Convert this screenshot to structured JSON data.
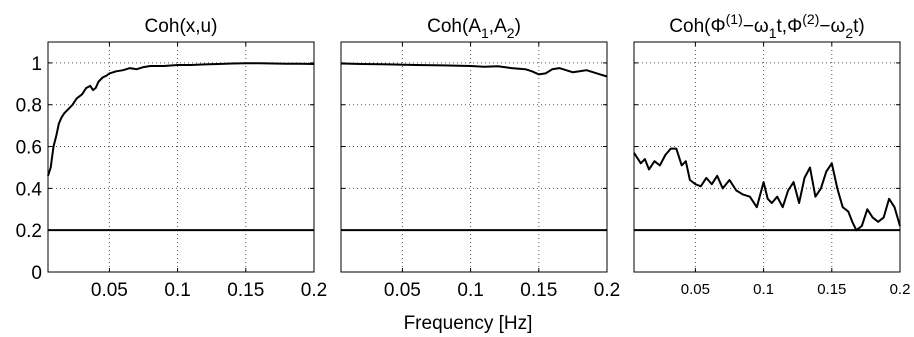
{
  "xlabel": "Frequency [Hz]",
  "chart_data": [
    {
      "type": "line",
      "title": "Coh(x,u)",
      "xlim": [
        0.005,
        0.2
      ],
      "ylim": [
        0,
        1.1
      ],
      "xticks": [
        0.05,
        0.1,
        0.15,
        0.2
      ],
      "xtick_labels": [
        "0.05",
        "0.1",
        "0.15",
        "0.2"
      ],
      "yticks": [
        0,
        0.2,
        0.4,
        0.6,
        0.8,
        1
      ],
      "ytick_labels": [
        "0",
        "0.2",
        "0.4",
        "0.6",
        "0.8",
        "1"
      ],
      "grid": true,
      "threshold": 0.2,
      "x": [
        0.005,
        0.007,
        0.009,
        0.011,
        0.013,
        0.015,
        0.017,
        0.02,
        0.023,
        0.026,
        0.03,
        0.033,
        0.036,
        0.038,
        0.04,
        0.042,
        0.045,
        0.048,
        0.05,
        0.055,
        0.06,
        0.065,
        0.07,
        0.075,
        0.08,
        0.09,
        0.1,
        0.11,
        0.12,
        0.13,
        0.14,
        0.15,
        0.16,
        0.17,
        0.18,
        0.19,
        0.2
      ],
      "y": [
        0.46,
        0.5,
        0.6,
        0.65,
        0.71,
        0.74,
        0.76,
        0.78,
        0.8,
        0.83,
        0.85,
        0.88,
        0.89,
        0.87,
        0.88,
        0.91,
        0.93,
        0.94,
        0.95,
        0.96,
        0.965,
        0.975,
        0.97,
        0.98,
        0.985,
        0.985,
        0.99,
        0.99,
        0.993,
        0.995,
        0.997,
        0.998,
        0.998,
        0.997,
        0.996,
        0.996,
        0.995
      ]
    },
    {
      "type": "line",
      "title": "Coh(A1,A2)",
      "xlim": [
        0.005,
        0.2
      ],
      "ylim": [
        0,
        1.1
      ],
      "xticks": [
        0.05,
        0.1,
        0.15,
        0.2
      ],
      "xtick_labels": [
        "0.05",
        "0.1",
        "0.15",
        "0.2"
      ],
      "grid": true,
      "threshold": 0.2,
      "x": [
        0.005,
        0.02,
        0.04,
        0.06,
        0.08,
        0.1,
        0.11,
        0.12,
        0.13,
        0.14,
        0.145,
        0.15,
        0.155,
        0.16,
        0.165,
        0.17,
        0.175,
        0.18,
        0.185,
        0.19,
        0.195,
        0.2
      ],
      "y": [
        0.997,
        0.995,
        0.993,
        0.99,
        0.988,
        0.985,
        0.982,
        0.984,
        0.975,
        0.97,
        0.96,
        0.945,
        0.95,
        0.97,
        0.975,
        0.965,
        0.955,
        0.96,
        0.965,
        0.955,
        0.945,
        0.935
      ]
    },
    {
      "type": "line",
      "title": "Coh(Φ(1)−ω1t,Φ(2)−ω2t)",
      "xlim": [
        0.005,
        0.2
      ],
      "ylim": [
        0,
        1.1
      ],
      "xticks": [
        0.05,
        0.1,
        0.15,
        0.2
      ],
      "xtick_labels": [
        "0.05",
        "0.1",
        "0.15",
        "0.2"
      ],
      "grid": true,
      "threshold": 0.2,
      "x": [
        0.005,
        0.007,
        0.01,
        0.013,
        0.016,
        0.02,
        0.024,
        0.028,
        0.032,
        0.036,
        0.04,
        0.043,
        0.046,
        0.05,
        0.054,
        0.058,
        0.062,
        0.066,
        0.07,
        0.075,
        0.08,
        0.085,
        0.09,
        0.095,
        0.1,
        0.103,
        0.106,
        0.11,
        0.114,
        0.118,
        0.122,
        0.126,
        0.13,
        0.134,
        0.138,
        0.142,
        0.146,
        0.15,
        0.154,
        0.158,
        0.162,
        0.165,
        0.168,
        0.172,
        0.176,
        0.18,
        0.184,
        0.188,
        0.192,
        0.196,
        0.2
      ],
      "y": [
        0.57,
        0.55,
        0.52,
        0.54,
        0.49,
        0.53,
        0.51,
        0.56,
        0.59,
        0.59,
        0.51,
        0.53,
        0.44,
        0.42,
        0.41,
        0.45,
        0.42,
        0.46,
        0.4,
        0.44,
        0.39,
        0.37,
        0.36,
        0.31,
        0.43,
        0.35,
        0.33,
        0.36,
        0.31,
        0.39,
        0.43,
        0.33,
        0.45,
        0.5,
        0.36,
        0.4,
        0.48,
        0.52,
        0.4,
        0.31,
        0.29,
        0.24,
        0.2,
        0.22,
        0.3,
        0.26,
        0.24,
        0.26,
        0.35,
        0.31,
        0.22
      ]
    }
  ]
}
